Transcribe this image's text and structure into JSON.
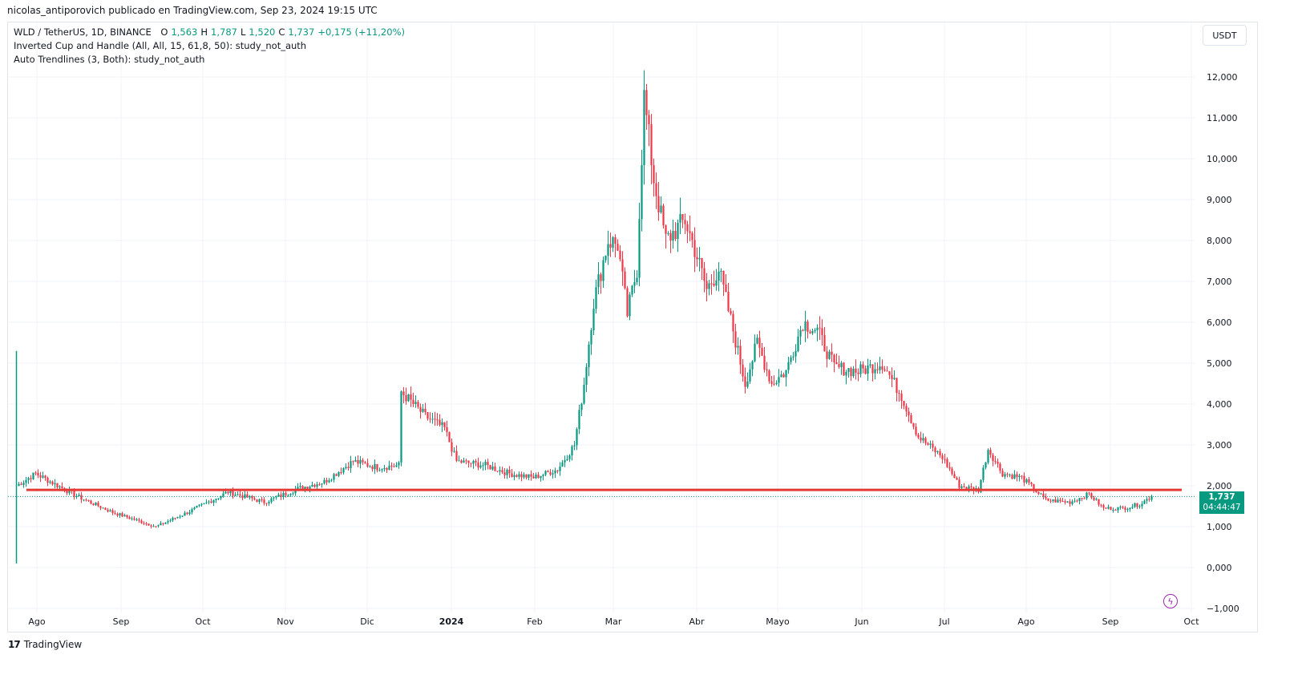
{
  "header": {
    "published_line": "nicolas_antiporovich publicado en TradingView.com, Sep 23, 2024 19:15 UTC"
  },
  "legend": {
    "symbol": "WLD / TetherUS, 1D, BINANCE",
    "o_label": "O",
    "o_value": "1,563",
    "h_label": "H",
    "h_value": "1,787",
    "l_label": "L",
    "l_value": "1,520",
    "c_label": "C",
    "c_value": "1,737",
    "change": "+0,175 (+11,20%)",
    "indicator1": "Inverted Cup and Handle (All, All, 15, 61,8, 50): study_not_auth",
    "indicator2": "Auto Trendlines (3, Both): study_not_auth"
  },
  "unit_button": "USDT",
  "price_tag": {
    "price": "1,737",
    "countdown": "04:44:47"
  },
  "footer": {
    "logo_mark": "17",
    "brand": "TradingView"
  },
  "colors": {
    "up": "#089981",
    "down": "#f23645",
    "resistance": "#e53935",
    "grid": "#f0f3fa"
  },
  "icons": {
    "flash": "lightning-icon"
  },
  "chart_data": {
    "type": "candlestick",
    "x_axis": {
      "labels": [
        "Ago",
        "Sep",
        "Oct",
        "Nov",
        "Dic",
        "2024",
        "Feb",
        "Mar",
        "Abr",
        "Mayo",
        "Jun",
        "Jul",
        "Ago",
        "Sep",
        "Oct"
      ],
      "bold": [
        "2024"
      ]
    },
    "y_axis": {
      "labels": [
        "12,000",
        "11,000",
        "10,000",
        "9,000",
        "8,000",
        "7,000",
        "6,000",
        "5,000",
        "4,000",
        "3,000",
        "2,000",
        "1,000",
        "0,000",
        "−1,000"
      ],
      "values": [
        12,
        11,
        10,
        9,
        8,
        7,
        6,
        5,
        4,
        3,
        2,
        1,
        0,
        -1
      ],
      "range": [
        -1,
        13
      ]
    },
    "resistance_level": 1.9,
    "last_price": 1.737,
    "anchors": [
      [
        0,
        2.0
      ],
      [
        8,
        2.3
      ],
      [
        25,
        1.75
      ],
      [
        40,
        1.35
      ],
      [
        58,
        1.0
      ],
      [
        73,
        1.4
      ],
      [
        88,
        1.85
      ],
      [
        103,
        1.6
      ],
      [
        118,
        1.95
      ],
      [
        128,
        2.1
      ],
      [
        140,
        2.6
      ],
      [
        150,
        2.45
      ],
      [
        159,
        2.5
      ],
      [
        160,
        4.3
      ],
      [
        170,
        3.7
      ],
      [
        178,
        3.4
      ],
      [
        183,
        2.6
      ],
      [
        195,
        2.5
      ],
      [
        205,
        2.3
      ],
      [
        215,
        2.2
      ],
      [
        225,
        2.4
      ],
      [
        232,
        3.0
      ],
      [
        236,
        4.5
      ],
      [
        240,
        6.5
      ],
      [
        246,
        8.0
      ],
      [
        250,
        7.9
      ],
      [
        254,
        6.2
      ],
      [
        258,
        7.3
      ],
      [
        261,
        11.5
      ],
      [
        265,
        9.5
      ],
      [
        270,
        8.0
      ],
      [
        278,
        8.5
      ],
      [
        282,
        7.8
      ],
      [
        287,
        6.8
      ],
      [
        292,
        7.3
      ],
      [
        298,
        5.8
      ],
      [
        303,
        4.5
      ],
      [
        308,
        5.5
      ],
      [
        314,
        4.5
      ],
      [
        320,
        4.8
      ],
      [
        327,
        6.0
      ],
      [
        333,
        5.8
      ],
      [
        340,
        4.9
      ],
      [
        350,
        4.8
      ],
      [
        360,
        5.0
      ],
      [
        368,
        4.2
      ],
      [
        375,
        3.2
      ],
      [
        385,
        2.7
      ],
      [
        392,
        2.0
      ],
      [
        400,
        1.9
      ],
      [
        404,
        2.9
      ],
      [
        410,
        2.3
      ],
      [
        418,
        2.2
      ],
      [
        428,
        1.65
      ],
      [
        438,
        1.6
      ],
      [
        446,
        1.8
      ],
      [
        452,
        1.45
      ],
      [
        460,
        1.45
      ],
      [
        467,
        1.55
      ],
      [
        472,
        1.74
      ]
    ]
  }
}
